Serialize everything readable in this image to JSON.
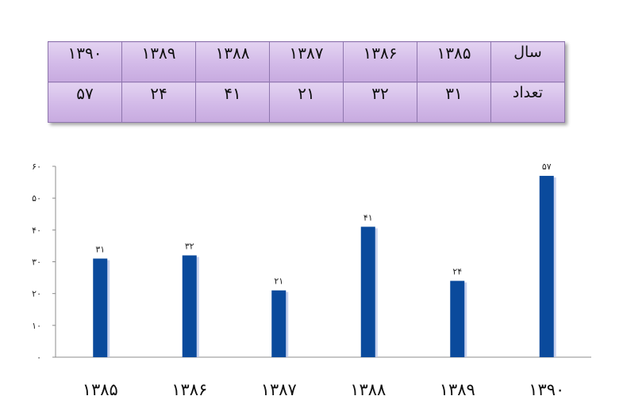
{
  "table": {
    "row_labels": [
      "سال",
      "تعداد"
    ],
    "years": [
      "۱۳۸۵",
      "۱۳۸۶",
      "۱۳۸۷",
      "۱۳۸۸",
      "۱۳۸۹",
      "۱۳۹۰"
    ],
    "counts": [
      "۳۱",
      "۳۲",
      "۲۱",
      "۴۱",
      "۲۴",
      "۵۷"
    ]
  },
  "chart_data": {
    "type": "bar",
    "categories": [
      "۱۳۸۵",
      "۱۳۸۶",
      "۱۳۸۷",
      "۱۳۸۸",
      "۱۳۸۹",
      "۱۳۹۰"
    ],
    "values": [
      31,
      32,
      21,
      41,
      24,
      57
    ],
    "data_labels": [
      "۳۱",
      "۳۲",
      "۲۱",
      "۴۱",
      "۲۴",
      "۵۷"
    ],
    "y_ticks": [
      0,
      10,
      20,
      30,
      40,
      50,
      60
    ],
    "y_tick_labels": [
      "۰",
      "۱۰",
      "۲۰",
      "۳۰",
      "۴۰",
      "۵۰",
      "۶۰"
    ],
    "ylim": [
      0,
      60
    ],
    "grid": false,
    "legend": "none",
    "bar_color": "#0a4a9c"
  }
}
